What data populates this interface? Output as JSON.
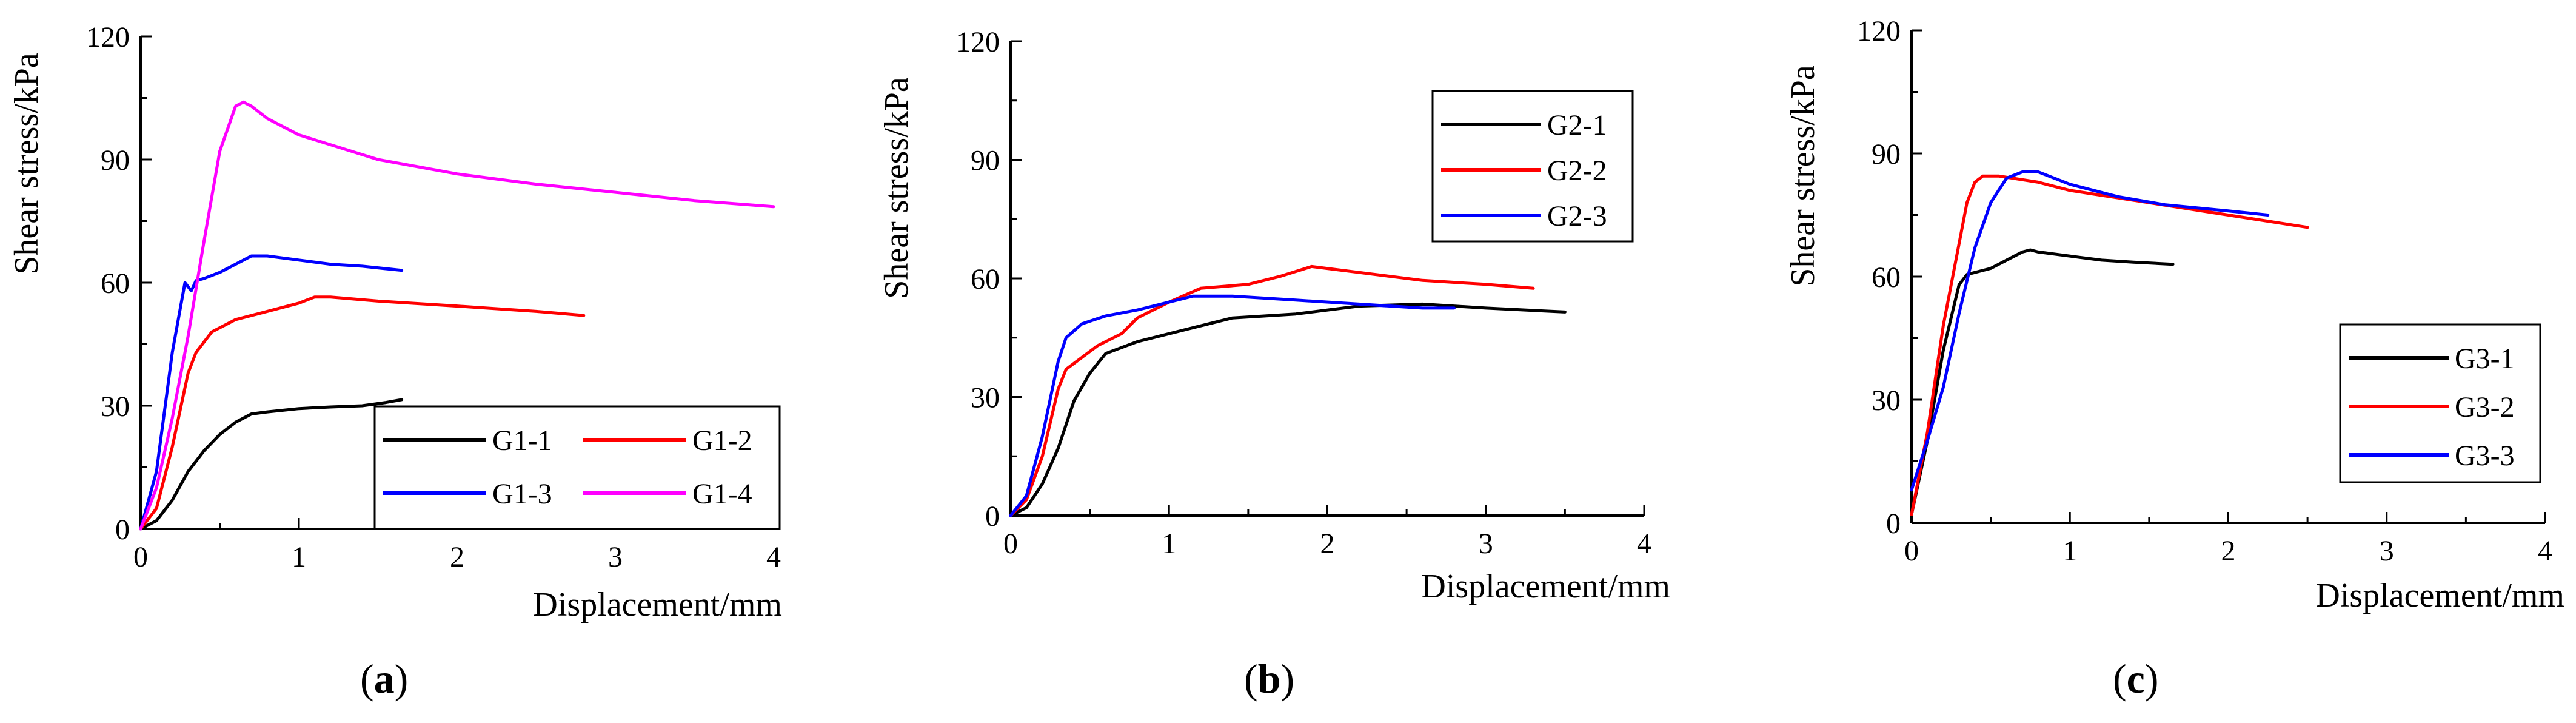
{
  "figure": {
    "subplot_labels": [
      "a",
      "b",
      "c"
    ]
  },
  "chart_data": [
    {
      "type": "line",
      "panel": "(a)",
      "xlabel": "Displacement/mm",
      "ylabel": "Shear stress/kPa",
      "xlim": [
        0,
        4
      ],
      "ylim": [
        0,
        120
      ],
      "xticks": [
        0,
        1,
        2,
        3,
        4
      ],
      "yticks": [
        0,
        30,
        60,
        90,
        120
      ],
      "grid": false,
      "legend": "bottom-right",
      "legend_columns": 2,
      "series": [
        {
          "name": "G1-1",
          "color": "#000000",
          "x": [
            0,
            0.1,
            0.2,
            0.3,
            0.4,
            0.5,
            0.6,
            0.7,
            0.8,
            1.0,
            1.2,
            1.4,
            1.55,
            1.65
          ],
          "y": [
            0,
            2,
            7,
            14,
            19,
            23,
            26,
            28,
            28.5,
            29.3,
            29.7,
            30,
            30.8,
            31.5
          ]
        },
        {
          "name": "G1-2",
          "color": "#ff0000",
          "x": [
            0,
            0.1,
            0.2,
            0.3,
            0.35,
            0.45,
            0.6,
            0.8,
            1.0,
            1.1,
            1.2,
            1.5,
            2.0,
            2.5,
            2.8
          ],
          "y": [
            0,
            5,
            20,
            38,
            43,
            48,
            51,
            53,
            55,
            56.5,
            56.5,
            55.5,
            54.3,
            53,
            52
          ]
        },
        {
          "name": "G1-3",
          "color": "#0000ff",
          "x": [
            0,
            0.1,
            0.2,
            0.28,
            0.32,
            0.35,
            0.4,
            0.5,
            0.6,
            0.7,
            0.8,
            1.0,
            1.2,
            1.4,
            1.65
          ],
          "y": [
            0,
            14,
            43,
            60,
            58,
            60.5,
            61,
            62.5,
            64.5,
            66.5,
            66.5,
            65.5,
            64.5,
            64,
            63
          ]
        },
        {
          "name": "G1-4",
          "color": "#ff00ff",
          "x": [
            0,
            0.1,
            0.2,
            0.3,
            0.4,
            0.5,
            0.6,
            0.65,
            0.7,
            0.8,
            1.0,
            1.5,
            2.0,
            2.5,
            3.0,
            3.5,
            4.0
          ],
          "y": [
            0,
            10,
            27,
            47,
            70,
            92,
            103,
            104,
            103,
            100,
            96,
            90,
            86.5,
            84,
            82,
            80,
            78.5
          ]
        }
      ]
    },
    {
      "type": "line",
      "panel": "(b)",
      "xlabel": "Displacement/mm",
      "ylabel": "Shear stress/kPa",
      "xlim": [
        0,
        4
      ],
      "ylim": [
        0,
        120
      ],
      "xticks": [
        0,
        1,
        2,
        3,
        4
      ],
      "yticks": [
        0,
        30,
        60,
        90,
        120
      ],
      "grid": false,
      "legend": "top-right",
      "legend_columns": 1,
      "series": [
        {
          "name": "G2-1",
          "color": "#000000",
          "x": [
            0,
            0.1,
            0.2,
            0.3,
            0.4,
            0.5,
            0.6,
            0.8,
            1.0,
            1.2,
            1.4,
            1.8,
            2.2,
            2.6,
            3.0,
            3.5
          ],
          "y": [
            0,
            2,
            8,
            17,
            29,
            36,
            41,
            44,
            46,
            48,
            50,
            51,
            53,
            53.5,
            52.5,
            51.5
          ]
        },
        {
          "name": "G2-2",
          "color": "#ff0000",
          "x": [
            0,
            0.1,
            0.2,
            0.3,
            0.35,
            0.45,
            0.55,
            0.7,
            0.8,
            1.0,
            1.2,
            1.5,
            1.7,
            1.9,
            2.2,
            2.6,
            3.0,
            3.3
          ],
          "y": [
            0,
            4,
            15,
            32,
            37,
            40,
            43,
            46,
            50,
            54,
            57.5,
            58.5,
            60.5,
            63,
            61.5,
            59.5,
            58.5,
            57.5
          ]
        },
        {
          "name": "G2-3",
          "color": "#0000ff",
          "x": [
            0,
            0.1,
            0.2,
            0.3,
            0.35,
            0.45,
            0.6,
            0.8,
            1.0,
            1.15,
            1.4,
            1.8,
            2.2,
            2.6,
            2.8
          ],
          "y": [
            0,
            5,
            20,
            39,
            45,
            48.5,
            50.5,
            52,
            54,
            55.5,
            55.5,
            54.5,
            53.5,
            52.5,
            52.5
          ]
        }
      ]
    },
    {
      "type": "line",
      "panel": "(c)",
      "xlabel": "Displacement/mm",
      "ylabel": "Shear stress/kPa",
      "xlim": [
        0,
        4
      ],
      "ylim": [
        0,
        120
      ],
      "xticks": [
        0,
        1,
        2,
        3,
        4
      ],
      "yticks": [
        0,
        30,
        60,
        90,
        120
      ],
      "grid": false,
      "legend": "middle-right",
      "legend_columns": 1,
      "series": [
        {
          "name": "G3-1",
          "color": "#000000",
          "x": [
            0,
            0.1,
            0.2,
            0.3,
            0.35,
            0.5,
            0.6,
            0.7,
            0.75,
            0.8,
            1.0,
            1.2,
            1.4,
            1.65
          ],
          "y": [
            2,
            20,
            42,
            58,
            60.5,
            62,
            64,
            66,
            66.5,
            66,
            65,
            64,
            63.5,
            63
          ]
        },
        {
          "name": "G3-2",
          "color": "#ff0000",
          "x": [
            0,
            0.1,
            0.2,
            0.3,
            0.35,
            0.4,
            0.45,
            0.55,
            0.8,
            1.0,
            1.5,
            2.0,
            2.5
          ],
          "y": [
            2,
            22,
            48,
            68,
            78,
            83,
            84.5,
            84.5,
            83,
            81,
            78,
            75,
            72
          ]
        },
        {
          "name": "G3-3",
          "color": "#0000ff",
          "x": [
            0,
            0.1,
            0.2,
            0.3,
            0.4,
            0.5,
            0.6,
            0.7,
            0.8,
            1.0,
            1.3,
            1.6,
            2.0,
            2.25
          ],
          "y": [
            8,
            20,
            33,
            51,
            67,
            78,
            84,
            85.5,
            85.5,
            82.5,
            79.5,
            77.5,
            76,
            75
          ]
        }
      ]
    }
  ]
}
